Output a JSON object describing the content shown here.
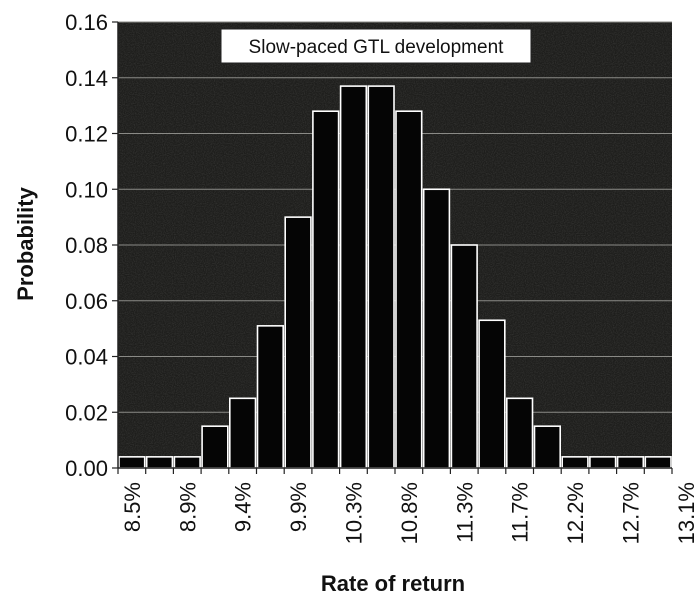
{
  "chart_data": {
    "type": "bar",
    "title": "Slow-paced GTL development",
    "xlabel": "Rate of return",
    "ylabel": "Probability",
    "ylim": [
      0,
      0.16
    ],
    "y_ticks": [
      "0.00",
      "0.02",
      "0.04",
      "0.06",
      "0.08",
      "0.10",
      "0.12",
      "0.14",
      "0.16"
    ],
    "x_tick_labels": [
      "8.5%",
      "8.9%",
      "9.4%",
      "9.9%",
      "10.3%",
      "10.8%",
      "11.3%",
      "11.7%",
      "12.2%",
      "12.7%",
      "13.1%"
    ],
    "values": [
      0.004,
      0.004,
      0.004,
      0.015,
      0.025,
      0.051,
      0.09,
      0.128,
      0.137,
      0.137,
      0.128,
      0.1,
      0.08,
      0.053,
      0.025,
      0.015,
      0.004,
      0.004,
      0.004,
      0.004
    ],
    "grid": true,
    "plot_background": "#1e1e1c",
    "bar_color": "#050505",
    "bar_edge_color": "#ffffff"
  }
}
